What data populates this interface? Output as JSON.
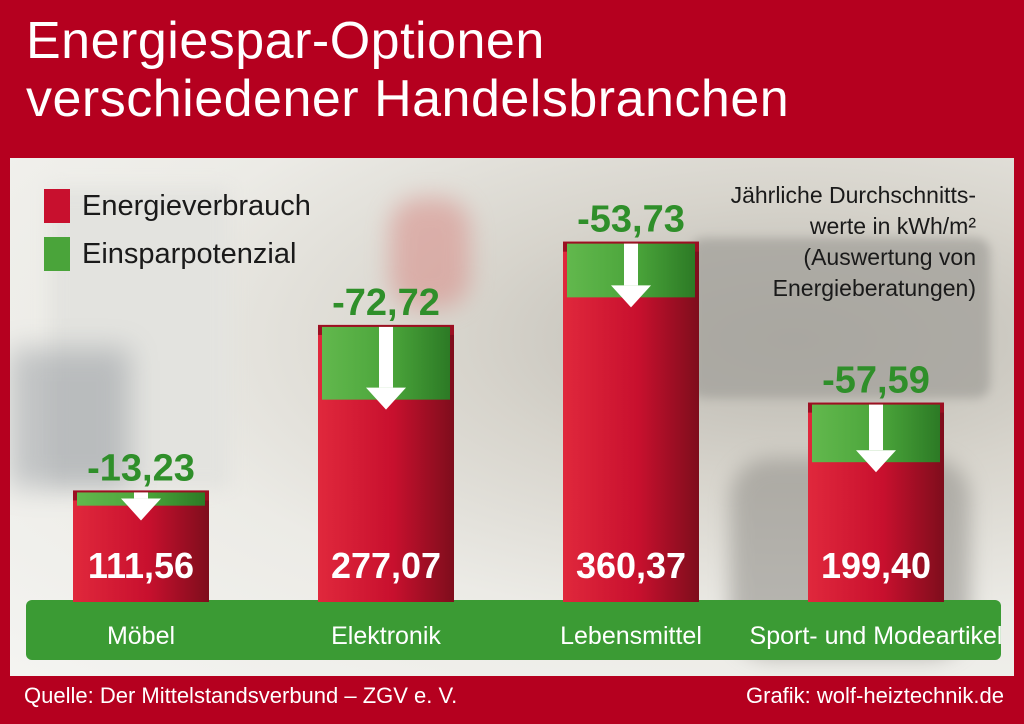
{
  "header": {
    "title_line1": "Energiespar-Optionen",
    "title_line2": "verschiedener Handelsbranchen"
  },
  "legend": [
    {
      "label": "Energieverbrauch",
      "color": "#c8102e"
    },
    {
      "label": "Einsparpotenzial",
      "color": "#4aa43a"
    }
  ],
  "note": {
    "line1": "Jährliche Durchschnitts-",
    "line2": "werte in kWh/m²",
    "line3": "(Auswertung von",
    "line4": "Energieberatungen)"
  },
  "footer": {
    "source": "Quelle: Der Mittelstandsverbund – ZGV e. V.",
    "credit": "Grafik: wolf-heiztechnik.de"
  },
  "colors": {
    "frame": "#b5001f",
    "consumption": "#c8102e",
    "savings": "#4aa43a",
    "base": "#3b9b34"
  },
  "chart_data": {
    "type": "bar",
    "categories": [
      "Möbel",
      "Elektronik",
      "Lebensmittel",
      "Sport- und Modeartikel"
    ],
    "series": [
      {
        "name": "Energieverbrauch",
        "values": [
          111.56,
          277.07,
          360.37,
          199.4
        ]
      },
      {
        "name": "Einsparpotenzial",
        "values": [
          -13.23,
          -72.72,
          -53.73,
          -57.59
        ]
      }
    ],
    "value_labels": [
      "111,56",
      "277,07",
      "360,37",
      "199,40"
    ],
    "savings_labels": [
      "-13,23",
      "-72,72",
      "-53,73",
      "-57,59"
    ],
    "title": "Energiespar-Optionen verschiedener Handelsbranchen",
    "ylabel": "",
    "xlabel": ""
  }
}
